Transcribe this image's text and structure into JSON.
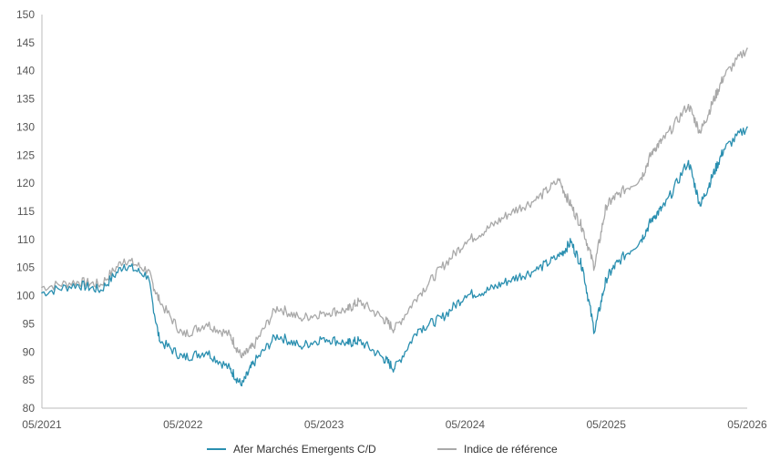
{
  "chart_data": {
    "type": "line",
    "title": "",
    "xlabel": "",
    "ylabel": "",
    "ylim": [
      80,
      150
    ],
    "y_ticks": [
      80,
      85,
      90,
      95,
      100,
      105,
      110,
      115,
      120,
      125,
      130,
      135,
      140,
      145,
      150
    ],
    "x_ticks": [
      "05/2021",
      "05/2022",
      "05/2023",
      "05/2024",
      "05/2025",
      "05/2026"
    ],
    "x_dates": [
      "2021-05",
      "2021-08",
      "2021-10",
      "2021-12",
      "2022-02",
      "2022-03",
      "2022-05",
      "2022-07",
      "2022-09",
      "2022-10",
      "2022-11",
      "2023-01",
      "2023-03",
      "2023-05",
      "2023-07",
      "2023-08",
      "2023-10",
      "2023-11",
      "2024-01",
      "2024-03",
      "2024-05",
      "2024-07",
      "2024-09",
      "2024-11",
      "2025-01",
      "2025-02",
      "2025-03",
      "2025-04",
      "2025-05",
      "2025-06",
      "2025-08",
      "2025-09",
      "2025-10",
      "2025-12",
      "2026-01",
      "2026-02",
      "2026-03",
      "2026-05"
    ],
    "grid": false,
    "legend_position": "bottom",
    "colors": {
      "fund": "#2a8fb0",
      "benchmark": "#a9a9a9",
      "axis": "#bbbbbb"
    },
    "series": [
      {
        "name": "Afer Marchés Emergents C/D",
        "values": [
          100.5,
          102,
          101,
          105.5,
          103.5,
          92,
          89,
          90,
          87,
          84,
          88,
          93,
          91,
          92.5,
          91.5,
          92,
          89,
          87,
          94,
          96,
          100,
          101,
          103,
          104.5,
          107,
          109.5,
          105,
          93.5,
          103,
          106,
          110,
          114,
          116,
          124,
          116,
          121,
          126,
          130
        ]
      },
      {
        "name": "Indice de référence",
        "values": [
          101.5,
          102.5,
          102,
          106.5,
          104.5,
          99,
          93,
          95,
          93,
          89,
          91,
          98,
          96,
          97,
          97.5,
          99,
          96,
          94,
          100,
          105,
          109.5,
          112,
          115,
          117,
          120.5,
          116,
          112,
          105,
          116,
          118,
          121,
          126,
          128,
          134,
          129,
          134,
          139,
          144
        ]
      }
    ]
  }
}
